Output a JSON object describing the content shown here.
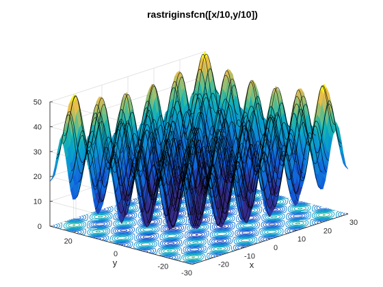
{
  "chart_data": {
    "type": "surface",
    "title": "rastriginsfcn([x/10,y/10])",
    "xlabel": "x",
    "ylabel": "y",
    "zlabel": "",
    "xlim": [
      -30,
      30
    ],
    "ylim": [
      -30,
      30
    ],
    "zlim": [
      0,
      50
    ],
    "x_ticks": [
      -20,
      -10,
      0,
      10,
      20,
      30
    ],
    "y_ticks": [
      -30,
      -20,
      0,
      20
    ],
    "z_ticks": [
      0,
      10,
      20,
      30,
      40,
      50
    ],
    "function": "rastrigin(x/10, y/10) = 20 + u^2 + v^2 - 10(cos 2πu + cos 2πv)",
    "colormap": "parula",
    "contour_projection": "floor",
    "grid": true,
    "colors": {
      "axis": "#262626",
      "grid": "#dcdcdc",
      "mesh": "#000000"
    }
  }
}
